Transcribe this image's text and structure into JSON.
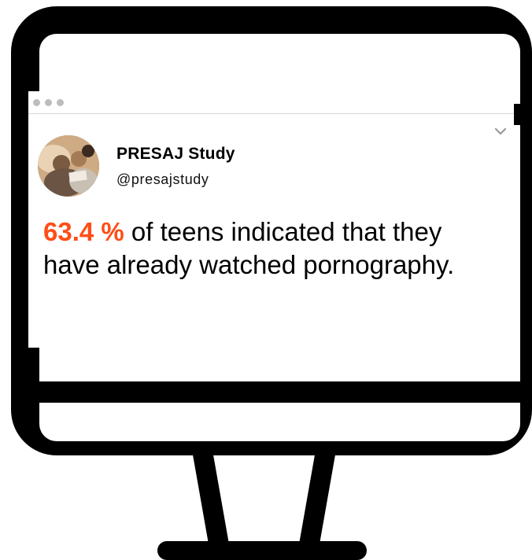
{
  "tweet": {
    "author_name": "PRESAJ Study",
    "author_handle": "@presajstudy",
    "highlight": "63.4 %",
    "body": " of teens indicated that they have already watched pornography."
  },
  "colors": {
    "frame": "#000000",
    "accent": "#ff4d16",
    "window_dots": "#bdbdbd"
  },
  "icons": {
    "menu": "chevron-down-icon",
    "window_controls": "traffic-light-dots"
  }
}
